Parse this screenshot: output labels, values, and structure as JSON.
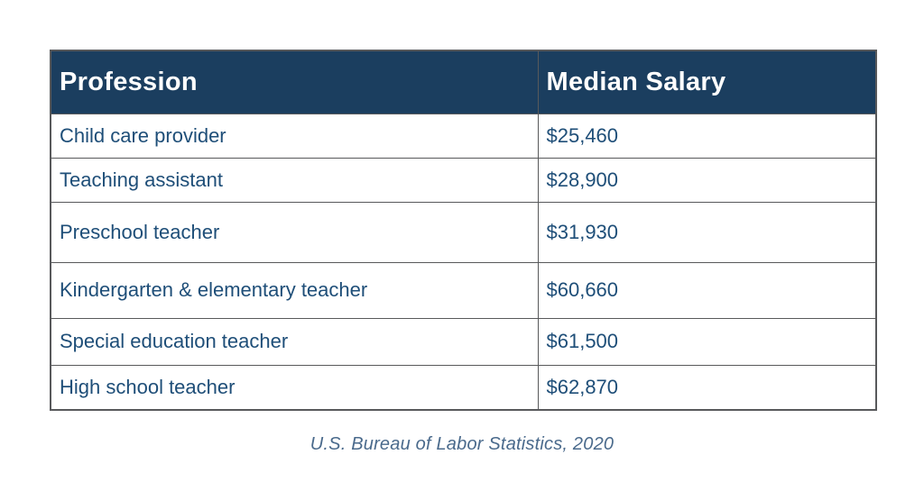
{
  "table": {
    "columns": [
      "Profession",
      "Median Salary"
    ],
    "rows": [
      {
        "profession": "Child care provider",
        "salary": "$25,460"
      },
      {
        "profession": "Teaching assistant",
        "salary": "$28,900"
      },
      {
        "profession": "Preschool teacher",
        "salary": "$31,930"
      },
      {
        "profession": "Kindergarten & elementary teacher",
        "salary": "$60,660"
      },
      {
        "profession": "Special education teacher",
        "salary": "$61,500"
      },
      {
        "profession": "High school teacher",
        "salary": "$62,870"
      }
    ]
  },
  "caption": "U.S. Bureau of Labor Statistics, 2020",
  "colors": {
    "header_bg": "#1b3e5f",
    "header_text": "#ffffff",
    "body_text": "#1e4e78",
    "caption_text": "#4a6a8c",
    "border": "#58595b",
    "background": "#ffffff"
  },
  "chart_data": {
    "type": "table",
    "title": "",
    "columns": [
      "Profession",
      "Median Salary"
    ],
    "rows": [
      [
        "Child care provider",
        25460
      ],
      [
        "Teaching assistant",
        28900
      ],
      [
        "Preschool teacher",
        31930
      ],
      [
        "Kindergarten & elementary teacher",
        60660
      ],
      [
        "Special education teacher",
        61500
      ],
      [
        "High school teacher",
        62870
      ]
    ],
    "source_note": "U.S. Bureau of Labor Statistics, 2020"
  }
}
